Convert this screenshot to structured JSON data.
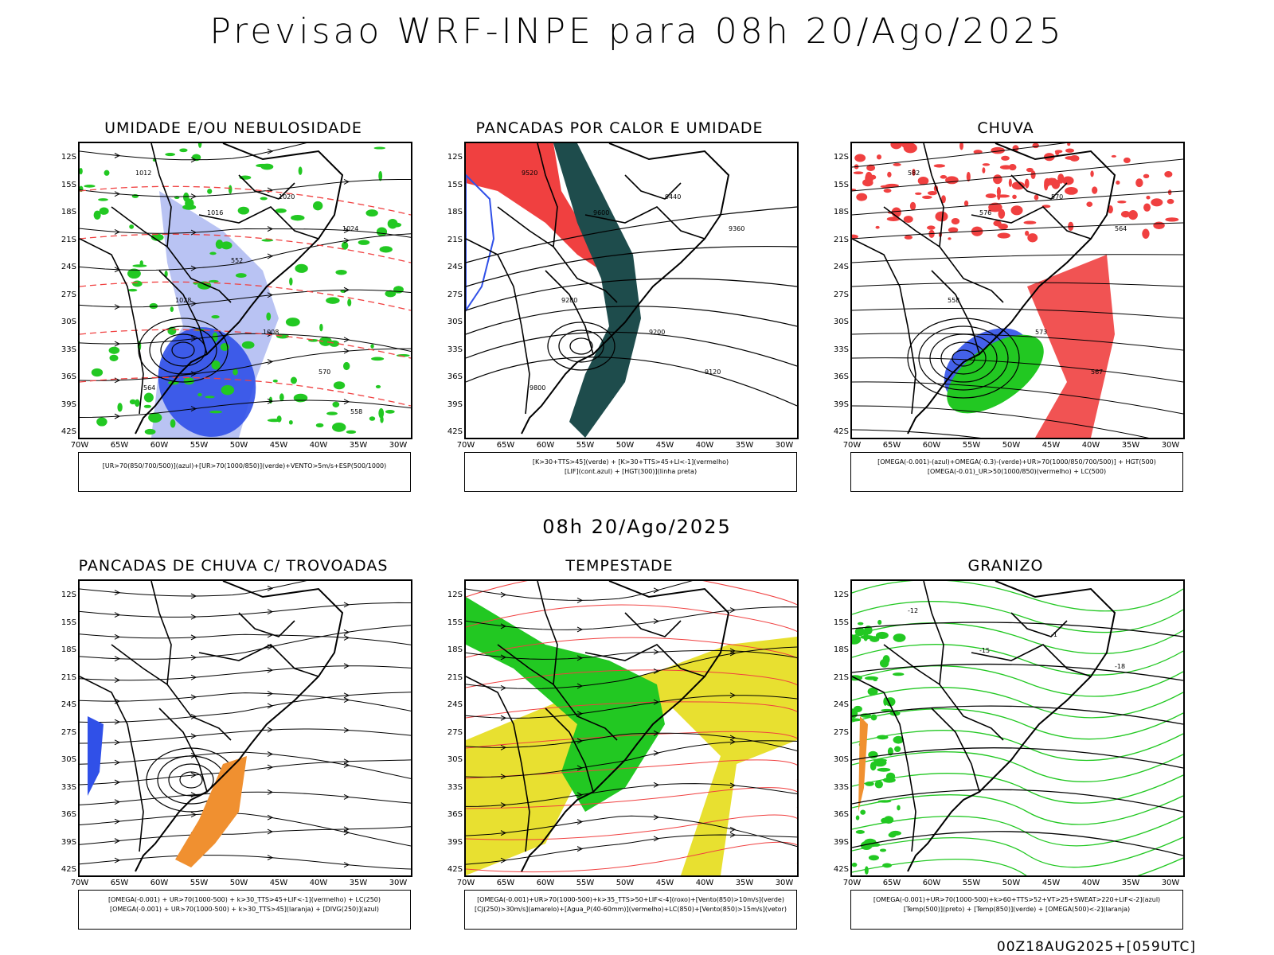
{
  "title": "Previsao WRF-INPE  para 08h 20/Ago/2025",
  "mid_title": "08h 20/Ago/2025",
  "footer": "00Z18AUG2025+[059UTC]",
  "lat_labels": [
    "12S",
    "15S",
    "18S",
    "21S",
    "24S",
    "27S",
    "30S",
    "33S",
    "36S",
    "39S",
    "42S"
  ],
  "lon_labels": [
    "70W",
    "65W",
    "60W",
    "55W",
    "50W",
    "45W",
    "40W",
    "35W",
    "30W"
  ],
  "panels": [
    {
      "title": "UMIDADE E/OU NEBULOSIDADE",
      "legend": [
        "[UR>70(850/700/500)](azul)+[UR>70(1000/850)](verde)+VENTO>5m/s+ESP(500/1000)"
      ],
      "contour_labels": [
        "1012",
        "1016",
        "1020",
        "1024",
        "1028",
        "1008",
        "570",
        "564",
        "558",
        "552"
      ]
    },
    {
      "title": "PANCADAS POR CALOR E UMIDADE",
      "legend": [
        "[K>30+TTS>45](verde) + [K>30+TTS>45+LI<-1](vermelho)",
        "[LIF](cont.azul) + [HGT(300)](linha preta)"
      ],
      "contour_labels": [
        "9520",
        "9600",
        "9440",
        "9360",
        "9280",
        "9200",
        "9120",
        "9800"
      ]
    },
    {
      "title": "CHUVA",
      "legend": [
        "[OMEGA(-0.001)-(azul)+OMEGA(-0.3)-(verde)+UR>70(1000/850/700/500)] + HGT(500)",
        "[OMEGA(-0.01)_UR>50(1000/850)(vermelho) + LC(500)"
      ],
      "contour_labels": [
        "582",
        "576",
        "570",
        "564",
        "558",
        "573",
        "567"
      ]
    },
    {
      "title": "PANCADAS DE CHUVA C/ TROVOADAS",
      "legend": [
        "[OMEGA(-0.001) + UR>70(1000-500) + k>30_TTS>45+LIF<-1](vermelho) + LC(250)",
        "[OMEGA(-0.001) + UR>70(1000-500) + k>30_TTS>45](laranja) + [DIVG(250)](azul)"
      ],
      "contour_labels": []
    },
    {
      "title": "TEMPESTADE",
      "legend": [
        "[OMEGA(-0.001)+UR>70(1000-500)+k>35_TTS>50+LIF<-4](roxo)+[Vento(850)>10m/s](verde)",
        "[CJ(250)>30m/s](amarelo)+[Agua_P(40-60mm)](vermelho)+LC(850)+[Vento(850)>15m/s](vetor)"
      ],
      "contour_labels": []
    },
    {
      "title": "GRANIZO",
      "legend": [
        "[OMEGA(-0.001)+UR>70(1000-500)+k>60+TTS>52+VT>25+SWEAT>220+LIF<-2](azul)",
        "[Temp(500)](preto) + [Temp(850)](verde) + [OMEGA(500)<-2](laranja)"
      ],
      "contour_labels": [
        "-12",
        "-15",
        "-1",
        "-18"
      ]
    }
  ],
  "colors": {
    "blue": "#3050e8",
    "light_blue": "#a8b4f0",
    "green": "#22c822",
    "red": "#f04040",
    "orange": "#f09030",
    "yellow": "#e8e030",
    "dark_teal": "#1e4c4c"
  }
}
